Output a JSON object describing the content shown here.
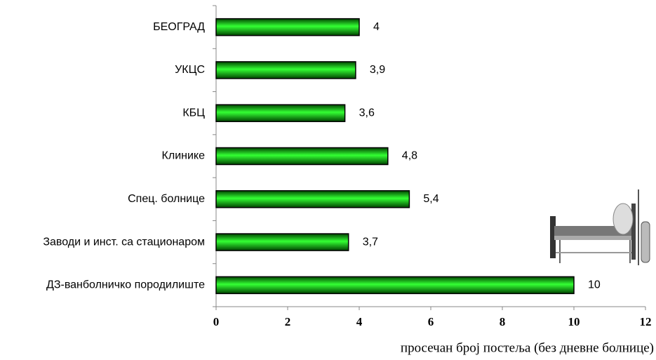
{
  "chart_data": {
    "type": "barh",
    "categories": [
      "БЕОГРАД",
      "УКЦС",
      "КБЦ",
      "Клинике",
      "Спец. болнице",
      "Заводи и инст. са стационаром",
      "ДЗ-ванболничко породилиште"
    ],
    "values": [
      4,
      3.9,
      3.6,
      4.8,
      5.4,
      3.7,
      10
    ],
    "value_labels": [
      "4",
      "3,9",
      "3,6",
      "4,8",
      "5,4",
      "3,7",
      "10"
    ],
    "color": "#00e000",
    "xlim": [
      0,
      12
    ],
    "xticks": [
      0,
      2,
      4,
      6,
      8,
      10,
      12
    ],
    "xlabel": "просечан број постеља (без дневне болнице)"
  }
}
